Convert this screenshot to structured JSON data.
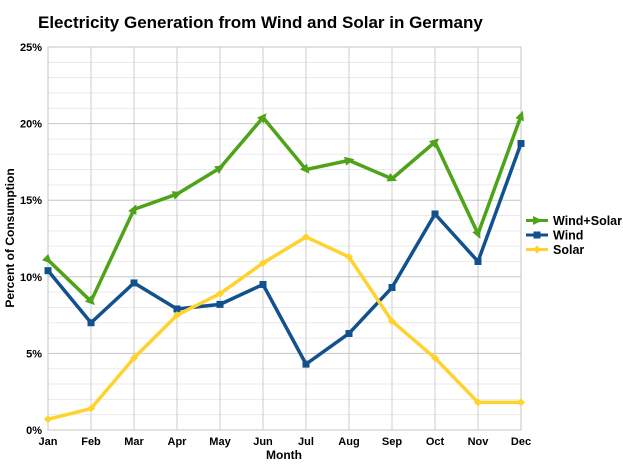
{
  "chart_data": {
    "type": "line",
    "title": "Electricity Generation from Wind and Solar in Germany",
    "xlabel": "Month",
    "ylabel": "Percent of Consumption",
    "categories": [
      "Jan",
      "Feb",
      "Mar",
      "Apr",
      "May",
      "Jun",
      "Jul",
      "Aug",
      "Sep",
      "Oct",
      "Nov",
      "Dec"
    ],
    "ylim": [
      0,
      25
    ],
    "y_major_step": 5,
    "y_minor_step": 1,
    "y_tick_labels": [
      "0%",
      "5%",
      "10%",
      "15%",
      "20%",
      "25%"
    ],
    "grid": true,
    "legend_position": "right-middle",
    "series": [
      {
        "name": "Wind+Solar",
        "color": "#4EA319",
        "marker": "arrow",
        "values": [
          11.1,
          8.4,
          14.4,
          15.4,
          17.1,
          20.4,
          17.0,
          17.6,
          16.4,
          18.8,
          12.8,
          20.5
        ]
      },
      {
        "name": "Wind",
        "color": "#11518E",
        "marker": "square",
        "values": [
          10.4,
          7.0,
          9.6,
          7.9,
          8.2,
          9.5,
          4.3,
          6.3,
          9.3,
          14.1,
          11.0,
          18.7
        ]
      },
      {
        "name": "Solar",
        "color": "#FFD22E",
        "marker": "diamond",
        "values": [
          0.7,
          1.4,
          4.7,
          7.5,
          8.9,
          10.9,
          12.6,
          11.3,
          7.1,
          4.7,
          1.8,
          1.8
        ]
      }
    ]
  },
  "colors": {
    "background": "#FFFFFF",
    "grid_major": "#C6C6C6",
    "grid_minor": "#EAEAEA",
    "grid_vertical": "#CCCCCC",
    "axis_text": "#000000"
  }
}
